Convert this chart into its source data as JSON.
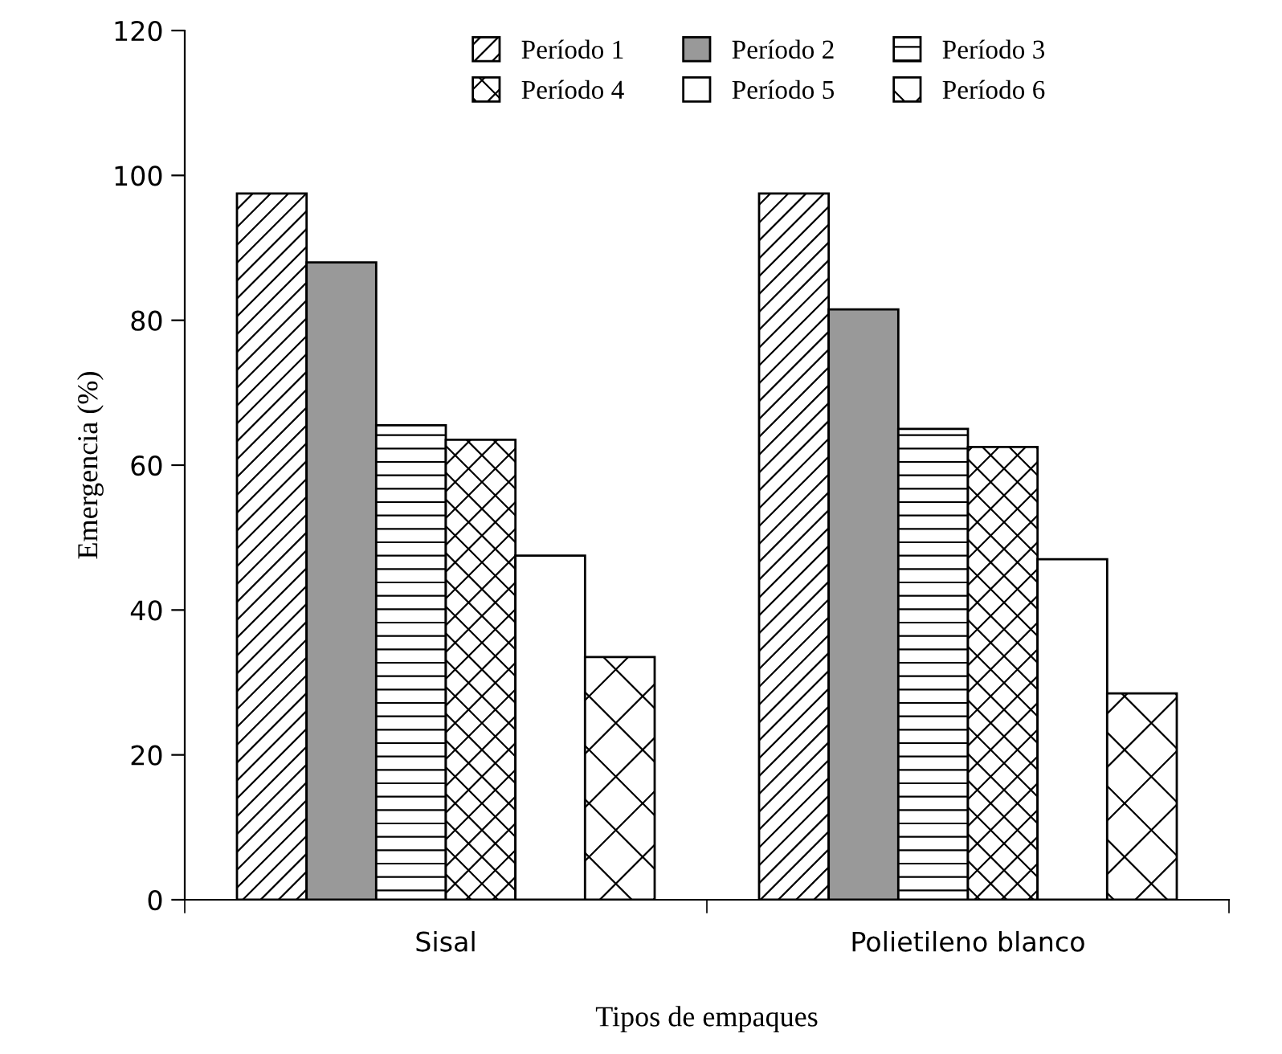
{
  "chart_data": {
    "type": "bar",
    "xlabel": "Tipos de empaques",
    "ylabel": "Emergencia (%)",
    "categories": [
      "Sisal",
      "Polietileno blanco"
    ],
    "series": [
      {
        "name": "Período 1",
        "color": "#000000",
        "values": [
          97.5,
          97.5
        ]
      },
      {
        "name": "Período 2",
        "color": "#999999",
        "values": [
          88,
          81.5
        ]
      },
      {
        "name": "Período 3",
        "color": "#000000",
        "values": [
          65.5,
          65
        ]
      },
      {
        "name": "Período 4",
        "color": "#000000",
        "values": [
          63.5,
          62.5
        ]
      },
      {
        "name": "Período 5",
        "color": "#ffffff",
        "values": [
          47.5,
          47
        ]
      },
      {
        "name": "Período 6",
        "color": "#000000",
        "values": [
          33.5,
          28.5
        ]
      }
    ],
    "ylim": [
      0,
      120
    ],
    "yticks": [
      0,
      20,
      40,
      60,
      80,
      100,
      120
    ],
    "grid": false,
    "legend": "top"
  }
}
